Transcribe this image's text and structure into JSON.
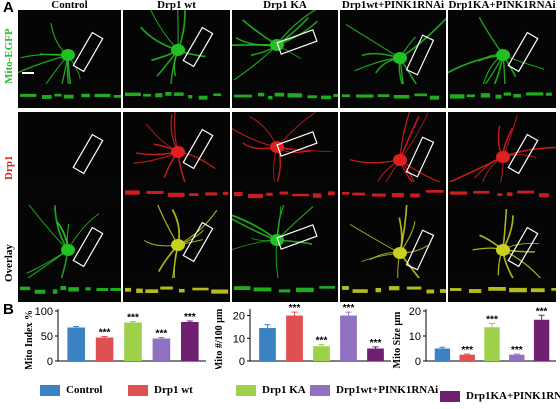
{
  "panel_a_label": "A",
  "panel_b_label": "B",
  "columns": [
    "Control",
    "Drp1 wt",
    "Drp1 KA",
    "Drp1wt+PINK1RNAi",
    "Drp1KA+PINK1RNAi"
  ],
  "rows": [
    {
      "label": "Mito-EGFP",
      "color": "#2dbb2d"
    },
    {
      "label": "Drp1",
      "color": "#e02020"
    },
    {
      "label": "Overlay",
      "color": "#000000"
    }
  ],
  "group_colors": [
    "#3b82c4",
    "#e05050",
    "#9fd04a",
    "#9070c0",
    "#702070"
  ],
  "chart_data": [
    {
      "type": "bar",
      "categories": [
        "Control",
        "Drp1 wt",
        "Drp1 KA",
        "Drp1wt+PINK1RNAi",
        "Drp1KA+PINK1RNAi"
      ],
      "values": [
        67,
        47,
        77,
        45,
        78
      ],
      "errors": [
        2,
        2,
        2,
        2,
        2
      ],
      "significance": [
        "",
        "***",
        "***",
        "***",
        "***"
      ],
      "ylabel": "Mito Index %",
      "ylim": [
        0,
        100
      ],
      "yticks": [
        "0",
        "50",
        "100"
      ]
    },
    {
      "type": "bar",
      "categories": [
        "Control",
        "Drp1 wt",
        "Drp1 KA",
        "Drp1wt+PINK1RNAi",
        "Drp1KA+PINK1RNAi"
      ],
      "values": [
        14.5,
        20,
        6.5,
        20,
        5.5
      ],
      "errors": [
        1.5,
        1.5,
        0.7,
        1.5,
        0.7
      ],
      "significance": [
        "",
        "***",
        "***",
        "***",
        "***"
      ],
      "ylabel": "Mito #/100 μm",
      "ylim": [
        0,
        22
      ],
      "yticks": [
        "0",
        "10",
        "20"
      ]
    },
    {
      "type": "bar",
      "categories": [
        "Control",
        "Drp1 wt",
        "Drp1 KA",
        "Drp1wt+PINK1RNAi",
        "Drp1KA+PINK1RNAi"
      ],
      "values": [
        5,
        2.5,
        13.5,
        2.5,
        16.5
      ],
      "errors": [
        0.5,
        0.3,
        1.5,
        0.3,
        1.8
      ],
      "significance": [
        "",
        "***",
        "***",
        "***",
        "***"
      ],
      "ylabel": "Mito Size μm",
      "ylim": [
        0,
        20
      ],
      "yticks": [
        "0",
        "10",
        "20"
      ]
    }
  ]
}
